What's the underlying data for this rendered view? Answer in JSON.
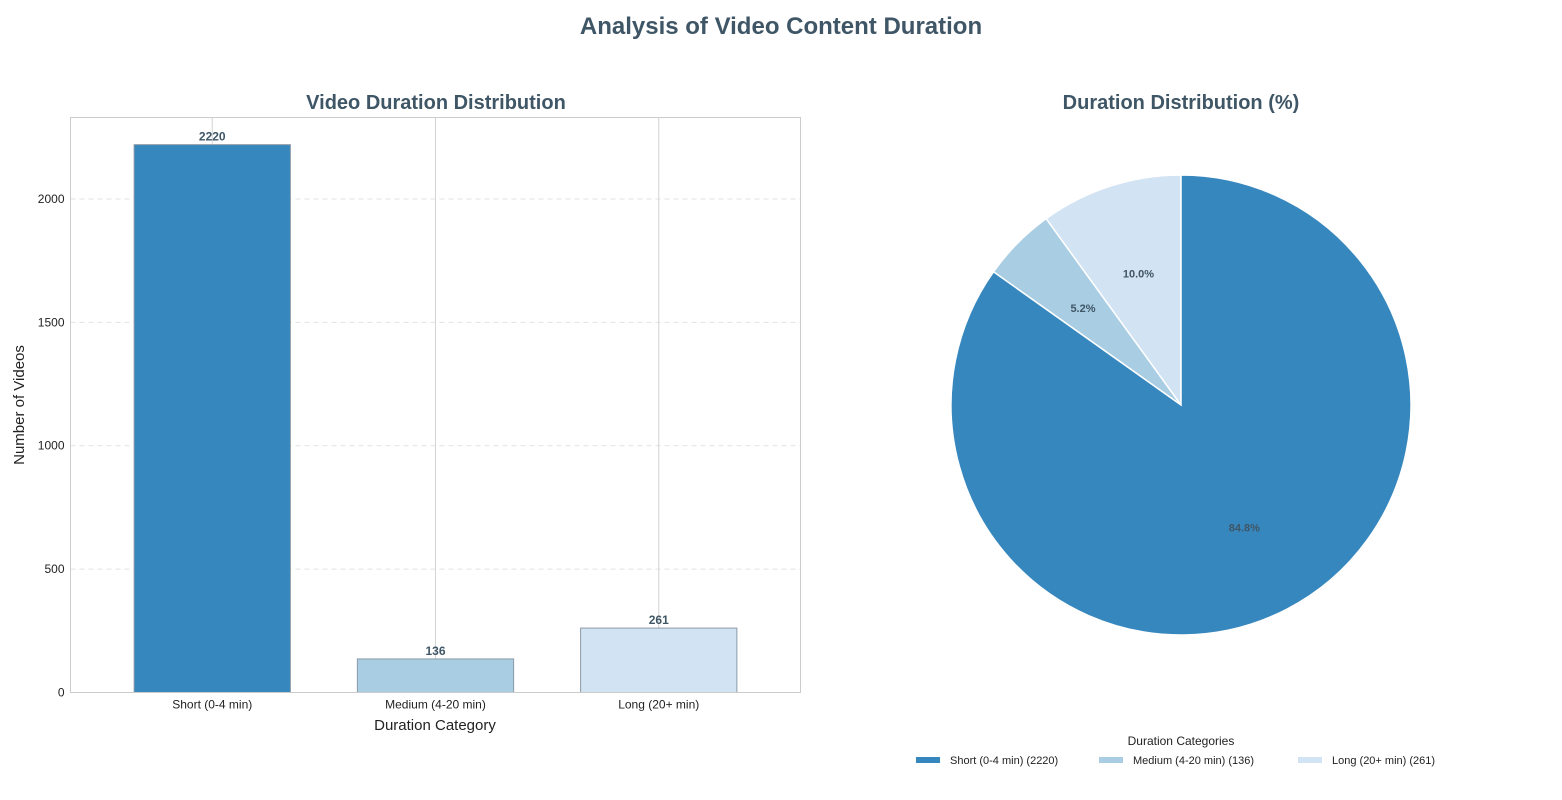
{
  "suptitle": "Analysis of Video Content Duration",
  "colors": {
    "short": "#3787bf",
    "medium": "#a9cde3",
    "long": "#d2e3f3",
    "title": "#3f5666",
    "bar_edge": "#8b9aa6"
  },
  "chart_data": [
    {
      "type": "bar",
      "title": "Video Duration Distribution",
      "xlabel": "Duration Category",
      "ylabel": "Number of Videos",
      "categories": [
        "Short (0-4 min)",
        "Medium (4-20 min)",
        "Long (20+ min)"
      ],
      "values": [
        2220,
        136,
        261
      ],
      "value_labels": [
        "2220",
        "136",
        "261"
      ],
      "ylim": [
        0,
        2330
      ],
      "yticks": [
        0,
        500,
        1000,
        1500,
        2000
      ],
      "ytick_labels": [
        "0",
        "500",
        "1000",
        "1500",
        "2000"
      ],
      "grid": true
    },
    {
      "type": "pie",
      "title": "Duration Distribution (%)",
      "labels": [
        "Short (0-4 min)",
        "Medium (4-20 min)",
        "Long (20+ min)"
      ],
      "values": [
        2220,
        136,
        261
      ],
      "percent_labels": [
        "84.8%",
        "5.2%",
        "10.0%"
      ],
      "legend_title": "Duration Categories",
      "legend_entries": [
        "Short (0-4 min) (2220)",
        "Medium (4-20 min) (136)",
        "Long (20+ min) (261)"
      ],
      "legend_position": "bottom-center"
    }
  ]
}
